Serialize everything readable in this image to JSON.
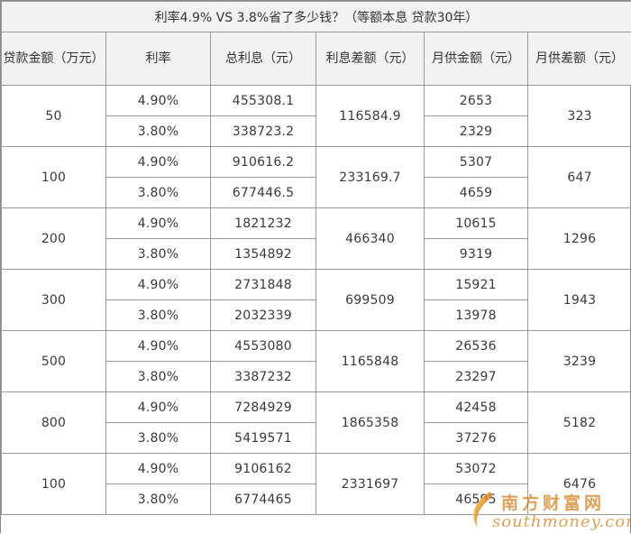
{
  "title": "利率4.9% VS 3.8%省了多少钱？（等额本息 贷款30年）",
  "headers": {
    "amount": "贷款金额（万元）",
    "rate": "利率",
    "total_interest": "总利息（元）",
    "interest_diff": "利息差额（元）",
    "monthly": "月供金额（元）",
    "monthly_diff": "月供差额（元）"
  },
  "rows": [
    {
      "amount": "50",
      "rate_a": "4.90%",
      "rate_b": "3.80%",
      "interest_a": "455308.1",
      "interest_b": "338723.2",
      "interest_diff": "116584.9",
      "monthly_a": "2653",
      "monthly_b": "2329",
      "monthly_diff": "323"
    },
    {
      "amount": "100",
      "rate_a": "4.90%",
      "rate_b": "3.80%",
      "interest_a": "910616.2",
      "interest_b": "677446.5",
      "interest_diff": "233169.7",
      "monthly_a": "5307",
      "monthly_b": "4659",
      "monthly_diff": "647"
    },
    {
      "amount": "200",
      "rate_a": "4.90%",
      "rate_b": "3.80%",
      "interest_a": "1821232",
      "interest_b": "1354892",
      "interest_diff": "466340",
      "monthly_a": "10615",
      "monthly_b": "9319",
      "monthly_diff": "1296"
    },
    {
      "amount": "300",
      "rate_a": "4.90%",
      "rate_b": "3.80%",
      "interest_a": "2731848",
      "interest_b": "2032339",
      "interest_diff": "699509",
      "monthly_a": "15921",
      "monthly_b": "13978",
      "monthly_diff": "1943"
    },
    {
      "amount": "500",
      "rate_a": "4.90%",
      "rate_b": "3.80%",
      "interest_a": "4553080",
      "interest_b": "3387232",
      "interest_diff": "1165848",
      "monthly_a": "26536",
      "monthly_b": "23297",
      "monthly_diff": "3239"
    },
    {
      "amount": "800",
      "rate_a": "4.90%",
      "rate_b": "3.80%",
      "interest_a": "7284929",
      "interest_b": "5419571",
      "interest_diff": "1865358",
      "monthly_a": "42458",
      "monthly_b": "37276",
      "monthly_diff": "5182"
    },
    {
      "amount": "100",
      "rate_a": "4.90%",
      "rate_b": "3.80%",
      "interest_a": "9106162",
      "interest_b": "6774465",
      "interest_diff": "2331697",
      "monthly_a": "53072",
      "monthly_b": "46595",
      "monthly_diff": "6476"
    }
  ],
  "watermark": {
    "name": "南方财富网",
    "domain": "southmoney.com",
    "color": "#d98a2b"
  },
  "colors": {
    "header_bg": "#f2f2f2",
    "border": "#9a9a9a",
    "text": "#3a3a3a"
  }
}
